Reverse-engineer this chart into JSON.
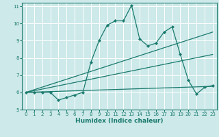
{
  "xlabel": "Humidex (Indice chaleur)",
  "xlim": [
    -0.5,
    23.5
  ],
  "ylim": [
    5,
    11.2
  ],
  "yticks": [
    5,
    6,
    7,
    8,
    9,
    10,
    11
  ],
  "xticks": [
    0,
    1,
    2,
    3,
    4,
    5,
    6,
    7,
    8,
    9,
    10,
    11,
    12,
    13,
    14,
    15,
    16,
    17,
    18,
    19,
    20,
    21,
    22,
    23
  ],
  "bg_color": "#cde9e9",
  "grid_color": "#ffffff",
  "line_color": "#1a7a6e",
  "main_series": {
    "x": [
      0,
      1,
      2,
      3,
      4,
      5,
      6,
      7,
      8,
      9,
      10,
      11,
      12,
      13,
      14,
      15,
      16,
      17,
      18,
      19,
      20,
      21,
      22,
      23
    ],
    "y": [
      6.0,
      6.0,
      6.0,
      6.0,
      5.55,
      5.7,
      5.85,
      6.0,
      7.75,
      9.0,
      9.9,
      10.15,
      10.15,
      11.05,
      9.1,
      8.7,
      8.85,
      9.5,
      9.8,
      8.2,
      6.7,
      5.9,
      6.3,
      6.4
    ]
  },
  "straight_lines": [
    {
      "x": [
        0,
        23
      ],
      "y": [
        6.0,
        9.5
      ]
    },
    {
      "x": [
        0,
        23
      ],
      "y": [
        6.0,
        8.2
      ]
    },
    {
      "x": [
        0,
        23
      ],
      "y": [
        6.0,
        6.35
      ]
    }
  ]
}
